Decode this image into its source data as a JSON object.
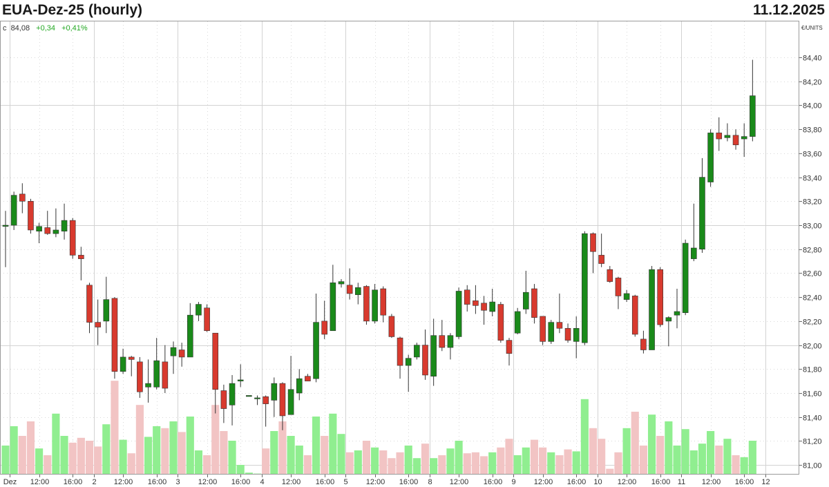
{
  "header": {
    "title": "EUA-Dez-25 (hourly)",
    "date": "11.12.2025"
  },
  "info": {
    "last_label": "c",
    "last_value": "84,08",
    "change": "+0,34",
    "change_pct": "+0,41%"
  },
  "colors": {
    "up": "#1a8a1a",
    "down": "#d83a2e",
    "vol_up": "#90ee90",
    "vol_down": "#f2c4c4",
    "positive_text": "#22a822"
  },
  "chart_data": {
    "type": "candlestick",
    "title": "EUA-Dez-25 (hourly)",
    "unit": "€/UNITS",
    "ylim": [
      80.92,
      84.7
    ],
    "y_ticks": [
      "84,40",
      "84,20",
      "84,00",
      "83,80",
      "83,60",
      "83,40",
      "83,20",
      "83,00",
      "82,80",
      "82,60",
      "82,40",
      "82,20",
      "82,00",
      "81,80",
      "81,60",
      "81,40",
      "81,20",
      "81,00"
    ],
    "y_tick_values": [
      84.4,
      84.2,
      84.0,
      83.8,
      83.6,
      83.4,
      83.2,
      83.0,
      82.8,
      82.6,
      82.4,
      82.2,
      82.0,
      81.8,
      81.6,
      81.4,
      81.2,
      81.0
    ],
    "x_ticks": [
      {
        "i": 0.5,
        "label": "Dez"
      },
      {
        "i": 4,
        "label": "12:00"
      },
      {
        "i": 8,
        "label": "16:00"
      },
      {
        "i": 10.5,
        "label": "2"
      },
      {
        "i": 14,
        "label": "12:00"
      },
      {
        "i": 18,
        "label": "16:00"
      },
      {
        "i": 20.5,
        "label": "3"
      },
      {
        "i": 24,
        "label": "12:00"
      },
      {
        "i": 28,
        "label": "16:00"
      },
      {
        "i": 30.5,
        "label": "4"
      },
      {
        "i": 34,
        "label": "12:00"
      },
      {
        "i": 38,
        "label": "16:00"
      },
      {
        "i": 40.5,
        "label": "5"
      },
      {
        "i": 44,
        "label": "12:00"
      },
      {
        "i": 48,
        "label": "16:00"
      },
      {
        "i": 50.5,
        "label": "8"
      },
      {
        "i": 54,
        "label": "12:00"
      },
      {
        "i": 58,
        "label": "16:00"
      },
      {
        "i": 60.5,
        "label": "9"
      },
      {
        "i": 64,
        "label": "12:00"
      },
      {
        "i": 68,
        "label": "16:00"
      },
      {
        "i": 70.5,
        "label": "10"
      },
      {
        "i": 74,
        "label": "12:00"
      },
      {
        "i": 78,
        "label": "16:00"
      },
      {
        "i": 80.5,
        "label": "11"
      },
      {
        "i": 84,
        "label": "12:00"
      },
      {
        "i": 88,
        "label": "16:00"
      },
      {
        "i": 90.5,
        "label": "12"
      }
    ],
    "candles": [
      {
        "o": 82.99,
        "h": 83.12,
        "l": 82.65,
        "c": 83.0,
        "v": 0.3
      },
      {
        "o": 83.0,
        "h": 83.28,
        "l": 82.96,
        "c": 83.25,
        "v": 0.5
      },
      {
        "o": 83.26,
        "h": 83.35,
        "l": 83.1,
        "c": 83.2,
        "v": 0.4
      },
      {
        "o": 83.2,
        "h": 83.22,
        "l": 82.93,
        "c": 82.96,
        "v": 0.55
      },
      {
        "o": 82.95,
        "h": 83.02,
        "l": 82.85,
        "c": 82.99,
        "v": 0.27
      },
      {
        "o": 82.98,
        "h": 83.12,
        "l": 82.92,
        "c": 82.93,
        "v": 0.2
      },
      {
        "o": 82.93,
        "h": 83.14,
        "l": 82.9,
        "c": 82.96,
        "v": 0.63
      },
      {
        "o": 82.95,
        "h": 83.18,
        "l": 82.88,
        "c": 83.04,
        "v": 0.4
      },
      {
        "o": 83.04,
        "h": 83.06,
        "l": 82.72,
        "c": 82.75,
        "v": 0.33
      },
      {
        "o": 82.75,
        "h": 82.82,
        "l": 82.54,
        "c": 82.72,
        "v": 0.38
      },
      {
        "o": 82.5,
        "h": 82.52,
        "l": 82.1,
        "c": 82.19,
        "v": 0.35
      },
      {
        "o": 82.19,
        "h": 82.38,
        "l": 82.0,
        "c": 82.15,
        "v": 0.29
      },
      {
        "o": 82.2,
        "h": 82.57,
        "l": 82.1,
        "c": 82.38,
        "v": 0.52
      },
      {
        "o": 82.39,
        "h": 82.4,
        "l": 81.72,
        "c": 81.78,
        "v": 0.97
      },
      {
        "o": 81.78,
        "h": 81.97,
        "l": 81.76,
        "c": 81.9,
        "v": 0.36
      },
      {
        "o": 81.9,
        "h": 81.91,
        "l": 81.74,
        "c": 81.88,
        "v": 0.22
      },
      {
        "o": 81.86,
        "h": 81.9,
        "l": 81.56,
        "c": 81.61,
        "v": 0.72
      },
      {
        "o": 81.65,
        "h": 81.88,
        "l": 81.52,
        "c": 81.68,
        "v": 0.39
      },
      {
        "o": 81.65,
        "h": 82.06,
        "l": 81.63,
        "c": 81.87,
        "v": 0.5
      },
      {
        "o": 81.86,
        "h": 82.0,
        "l": 81.6,
        "c": 81.64,
        "v": 0.48
      },
      {
        "o": 81.91,
        "h": 82.03,
        "l": 81.76,
        "c": 81.98,
        "v": 0.55
      },
      {
        "o": 81.96,
        "h": 82.02,
        "l": 81.82,
        "c": 81.9,
        "v": 0.44
      },
      {
        "o": 81.9,
        "h": 82.35,
        "l": 81.9,
        "c": 82.25,
        "v": 0.6
      },
      {
        "o": 82.25,
        "h": 82.36,
        "l": 82.2,
        "c": 82.34,
        "v": 0.25
      },
      {
        "o": 82.31,
        "h": 82.34,
        "l": 82.11,
        "c": 82.12,
        "v": 0.2
      },
      {
        "o": 82.1,
        "h": 82.1,
        "l": 81.43,
        "c": 81.63,
        "v": 0.72
      },
      {
        "o": 81.62,
        "h": 81.67,
        "l": 81.35,
        "c": 81.47,
        "v": 0.45
      },
      {
        "o": 81.5,
        "h": 81.75,
        "l": 81.33,
        "c": 81.68,
        "v": 0.35
      },
      {
        "o": 81.7,
        "h": 81.84,
        "l": 81.65,
        "c": 81.71,
        "v": 0.1
      },
      {
        "o": 81.58,
        "h": 81.58,
        "l": 81.58,
        "c": 81.58,
        "v": 0.02
      },
      {
        "o": 81.56,
        "h": 81.58,
        "l": 81.5,
        "c": 81.56,
        "v": 0.01
      },
      {
        "o": 81.57,
        "h": 81.58,
        "l": 81.32,
        "c": 81.51,
        "v": 0.27
      },
      {
        "o": 81.54,
        "h": 81.73,
        "l": 81.4,
        "c": 81.68,
        "v": 0.45
      },
      {
        "o": 81.68,
        "h": 81.69,
        "l": 81.29,
        "c": 81.41,
        "v": 0.55
      },
      {
        "o": 81.42,
        "h": 81.91,
        "l": 81.42,
        "c": 81.63,
        "v": 0.4
      },
      {
        "o": 81.6,
        "h": 81.8,
        "l": 81.54,
        "c": 81.72,
        "v": 0.3
      },
      {
        "o": 81.74,
        "h": 81.76,
        "l": 81.7,
        "c": 81.7,
        "v": 0.2
      },
      {
        "o": 81.72,
        "h": 82.43,
        "l": 81.69,
        "c": 82.19,
        "v": 0.6
      },
      {
        "o": 82.2,
        "h": 82.37,
        "l": 82.05,
        "c": 82.09,
        "v": 0.4
      },
      {
        "o": 82.12,
        "h": 82.67,
        "l": 82.12,
        "c": 82.52,
        "v": 0.63
      },
      {
        "o": 82.51,
        "h": 82.55,
        "l": 82.48,
        "c": 82.53,
        "v": 0.42
      },
      {
        "o": 82.5,
        "h": 82.64,
        "l": 82.38,
        "c": 82.43,
        "v": 0.23
      },
      {
        "o": 82.42,
        "h": 82.52,
        "l": 82.34,
        "c": 82.48,
        "v": 0.25
      },
      {
        "o": 82.49,
        "h": 82.5,
        "l": 82.17,
        "c": 82.2,
        "v": 0.35
      },
      {
        "o": 82.2,
        "h": 82.51,
        "l": 82.18,
        "c": 82.46,
        "v": 0.28
      },
      {
        "o": 82.47,
        "h": 82.49,
        "l": 82.19,
        "c": 82.25,
        "v": 0.25
      },
      {
        "o": 82.24,
        "h": 82.26,
        "l": 82.06,
        "c": 82.07,
        "v": 0.17
      },
      {
        "o": 82.06,
        "h": 82.07,
        "l": 81.72,
        "c": 81.83,
        "v": 0.23
      },
      {
        "o": 81.83,
        "h": 81.92,
        "l": 81.61,
        "c": 81.89,
        "v": 0.3
      },
      {
        "o": 81.9,
        "h": 82.02,
        "l": 81.88,
        "c": 82.0,
        "v": 0.17
      },
      {
        "o": 82.0,
        "h": 82.13,
        "l": 81.71,
        "c": 81.75,
        "v": 0.32
      },
      {
        "o": 81.74,
        "h": 82.22,
        "l": 81.66,
        "c": 82.08,
        "v": 0.17
      },
      {
        "o": 82.08,
        "h": 82.21,
        "l": 81.95,
        "c": 81.98,
        "v": 0.2
      },
      {
        "o": 81.98,
        "h": 82.1,
        "l": 81.88,
        "c": 82.08,
        "v": 0.27
      },
      {
        "o": 82.07,
        "h": 82.48,
        "l": 82.05,
        "c": 82.45,
        "v": 0.35
      },
      {
        "o": 82.46,
        "h": 82.5,
        "l": 82.28,
        "c": 82.34,
        "v": 0.22
      },
      {
        "o": 82.37,
        "h": 82.5,
        "l": 82.26,
        "c": 82.33,
        "v": 0.23
      },
      {
        "o": 82.35,
        "h": 82.41,
        "l": 82.17,
        "c": 82.29,
        "v": 0.19
      },
      {
        "o": 82.28,
        "h": 82.47,
        "l": 82.24,
        "c": 82.36,
        "v": 0.23
      },
      {
        "o": 82.34,
        "h": 82.36,
        "l": 82.02,
        "c": 82.04,
        "v": 0.28
      },
      {
        "o": 82.04,
        "h": 82.06,
        "l": 81.83,
        "c": 81.93,
        "v": 0.37
      },
      {
        "o": 82.1,
        "h": 82.31,
        "l": 82.09,
        "c": 82.28,
        "v": 0.2
      },
      {
        "o": 82.3,
        "h": 82.62,
        "l": 82.26,
        "c": 82.44,
        "v": 0.28
      },
      {
        "o": 82.47,
        "h": 82.51,
        "l": 82.18,
        "c": 82.23,
        "v": 0.36
      },
      {
        "o": 82.24,
        "h": 82.24,
        "l": 82.0,
        "c": 82.03,
        "v": 0.28
      },
      {
        "o": 82.03,
        "h": 82.21,
        "l": 82.01,
        "c": 82.19,
        "v": 0.23
      },
      {
        "o": 82.19,
        "h": 82.43,
        "l": 82.1,
        "c": 82.14,
        "v": 0.2
      },
      {
        "o": 82.14,
        "h": 82.18,
        "l": 82.02,
        "c": 82.04,
        "v": 0.26
      },
      {
        "o": 82.03,
        "h": 82.24,
        "l": 81.89,
        "c": 82.14,
        "v": 0.24
      },
      {
        "o": 82.02,
        "h": 82.95,
        "l": 82.0,
        "c": 82.93,
        "v": 0.78
      },
      {
        "o": 82.93,
        "h": 82.94,
        "l": 82.6,
        "c": 82.78,
        "v": 0.48
      },
      {
        "o": 82.75,
        "h": 82.93,
        "l": 82.65,
        "c": 82.68,
        "v": 0.37
      },
      {
        "o": 82.63,
        "h": 82.66,
        "l": 82.52,
        "c": 82.53,
        "v": 0.06
      },
      {
        "o": 82.56,
        "h": 82.57,
        "l": 82.3,
        "c": 82.41,
        "v": 0.23
      },
      {
        "o": 82.38,
        "h": 82.46,
        "l": 82.36,
        "c": 82.43,
        "v": 0.48
      },
      {
        "o": 82.41,
        "h": 82.42,
        "l": 82.07,
        "c": 82.09,
        "v": 0.65
      },
      {
        "o": 82.05,
        "h": 82.12,
        "l": 81.93,
        "c": 81.96,
        "v": 0.3
      },
      {
        "o": 81.96,
        "h": 82.66,
        "l": 81.96,
        "c": 82.63,
        "v": 0.62
      },
      {
        "o": 82.63,
        "h": 82.65,
        "l": 82.15,
        "c": 82.17,
        "v": 0.4
      },
      {
        "o": 82.2,
        "h": 82.24,
        "l": 81.99,
        "c": 82.23,
        "v": 0.55
      },
      {
        "o": 82.25,
        "h": 82.47,
        "l": 82.14,
        "c": 82.28,
        "v": 0.3
      },
      {
        "o": 82.27,
        "h": 82.88,
        "l": 82.25,
        "c": 82.85,
        "v": 0.47
      },
      {
        "o": 82.72,
        "h": 83.18,
        "l": 82.7,
        "c": 82.81,
        "v": 0.25
      },
      {
        "o": 82.8,
        "h": 83.56,
        "l": 82.77,
        "c": 83.4,
        "v": 0.32
      },
      {
        "o": 83.36,
        "h": 83.8,
        "l": 83.32,
        "c": 83.77,
        "v": 0.45
      },
      {
        "o": 83.77,
        "h": 83.9,
        "l": 83.62,
        "c": 83.72,
        "v": 0.3
      },
      {
        "o": 83.73,
        "h": 83.85,
        "l": 83.7,
        "c": 83.75,
        "v": 0.37
      },
      {
        "o": 83.75,
        "h": 83.8,
        "l": 83.63,
        "c": 83.67,
        "v": 0.2
      },
      {
        "o": 83.72,
        "h": 83.85,
        "l": 83.57,
        "c": 83.74,
        "v": 0.18
      },
      {
        "o": 83.74,
        "h": 84.38,
        "l": 83.7,
        "c": 84.08,
        "v": 0.35
      }
    ]
  }
}
